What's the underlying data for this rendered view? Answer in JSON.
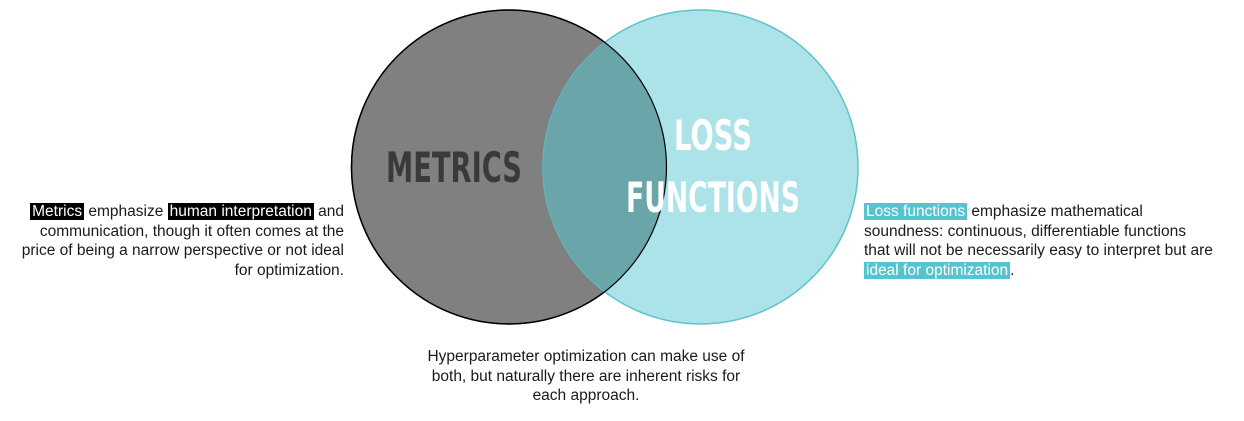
{
  "colors": {
    "metrics_fill": "#808080",
    "metrics_stroke": "#000000",
    "loss_fill": "#abe3e8",
    "loss_stroke": "#5bc3cc",
    "overlap_fill": "#6aa5a9",
    "metrics_label": "#3a3a3a",
    "loss_label": "#ffffff",
    "highlight_dark": "#000000",
    "highlight_teal": "#55c4cf"
  },
  "venn": {
    "metrics_label": "METRICS",
    "loss_label_line1": "LOSS",
    "loss_label_line2": "FUNCTIONS"
  },
  "left_note": {
    "hl1": "Metrics",
    "t1": " emphasize ",
    "hl2": "human interpretation",
    "t2": " and communication, though it often comes at the price of being a narrow perspective or not ideal for optimization."
  },
  "right_note": {
    "hl1": "Loss functions",
    "t1": " emphasize mathematical soundness: continuous, differentiable functions that will not be necessarily easy to interpret but are ",
    "hl2": "ideal for optimization",
    "t2": "."
  },
  "bottom_note": {
    "text": "Hyperparameter optimization can make use of both, but naturally there are inherent risks for each approach."
  }
}
